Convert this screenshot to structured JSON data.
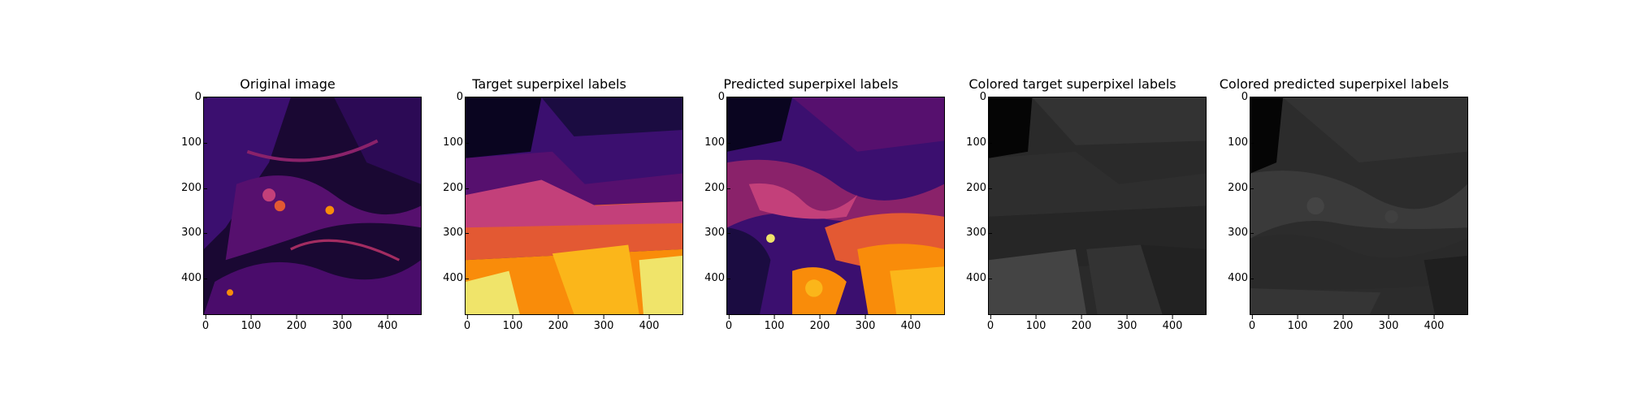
{
  "figure": {
    "panels": [
      {
        "title": "Original image",
        "image": "inferno heatmap of tissue section with bright vessels"
      },
      {
        "title": "Target superpixel labels",
        "image": "banded superpixel regions dark purple to yellow, top to bottom"
      },
      {
        "title": "Predicted superpixel labels",
        "image": "fragmented superpixel regions dark purple to yellow"
      },
      {
        "title": "Colored target superpixel labels",
        "image": "grayscale banded regions"
      },
      {
        "title": "Colored predicted superpixel labels",
        "image": "grayscale fragmented regions"
      }
    ],
    "xticks": [
      "0",
      "100",
      "200",
      "300",
      "400"
    ],
    "yticks": [
      "0",
      "100",
      "200",
      "300",
      "400"
    ],
    "colors": {
      "inferno_dark": "#000004",
      "inferno_purple": "#56106e",
      "inferno_orange": "#f98c0a",
      "inferno_yellow": "#f0e46a"
    }
  }
}
